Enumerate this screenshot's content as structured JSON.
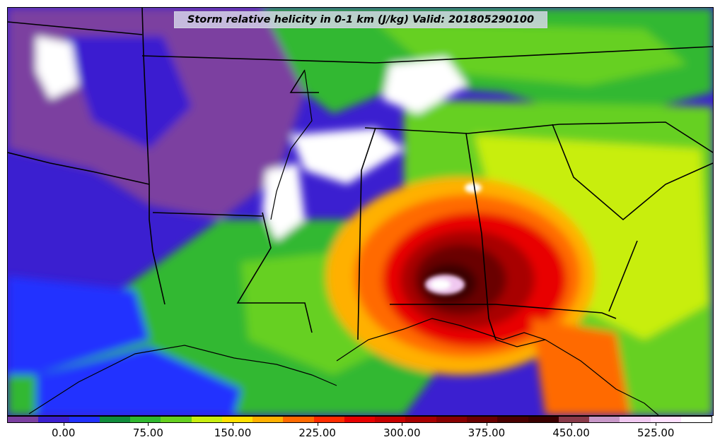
{
  "title": "Storm relative helicity in 0-1 km (J/kg) Valid: 201805290100",
  "colorbar": {
    "colors": [
      "#7b3fa0",
      "#3b1fd0",
      "#2030ff",
      "#108c3c",
      "#30b830",
      "#66d020",
      "#c8ee10",
      "#ffe000",
      "#ffb000",
      "#ff6a00",
      "#ff2c00",
      "#e80000",
      "#c80000",
      "#a80000",
      "#880000",
      "#6a0000",
      "#4a0000",
      "#3a0000",
      "#8a3a4a",
      "#c898c8",
      "#f0c8f0",
      "#ffe0ff",
      "#ffffff"
    ],
    "ticks": [
      "0.00",
      "75.00",
      "150.00",
      "225.00",
      "300.00",
      "375.00",
      "450.00",
      "525.00"
    ],
    "tick_values": [
      0,
      75,
      150,
      225,
      300,
      375,
      450,
      525
    ],
    "range": [
      -50,
      575
    ]
  }
}
